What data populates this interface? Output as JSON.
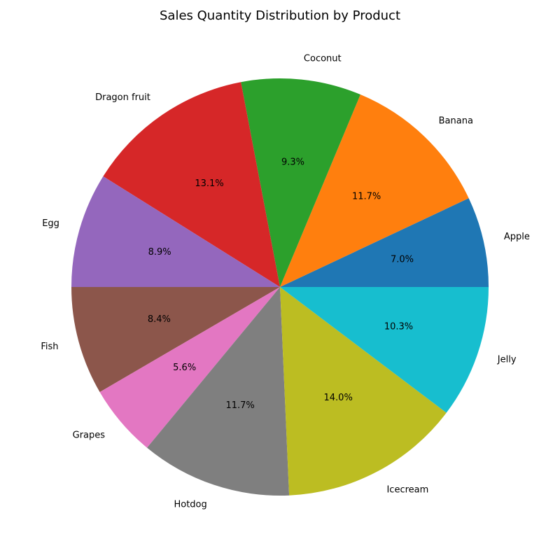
{
  "chart_data": {
    "type": "pie",
    "title": "Sales Quantity Distribution by Product",
    "start_angle_deg": 0,
    "direction": "counterclockwise",
    "slices": [
      {
        "label": "Apple",
        "value": 7.0,
        "pct_text": "7.0%",
        "color": "#1f77b4"
      },
      {
        "label": "Banana",
        "value": 11.7,
        "pct_text": "11.7%",
        "color": "#ff7f0e"
      },
      {
        "label": "Coconut",
        "value": 9.3,
        "pct_text": "9.3%",
        "color": "#2ca02c"
      },
      {
        "label": "Dragon fruit",
        "value": 13.1,
        "pct_text": "13.1%",
        "color": "#d62728"
      },
      {
        "label": "Egg",
        "value": 8.9,
        "pct_text": "8.9%",
        "color": "#9467bd"
      },
      {
        "label": "Fish",
        "value": 8.4,
        "pct_text": "8.4%",
        "color": "#8c564b"
      },
      {
        "label": "Grapes",
        "value": 5.6,
        "pct_text": "5.6%",
        "color": "#e377c2"
      },
      {
        "label": "Hotdog",
        "value": 11.7,
        "pct_text": "11.7%",
        "color": "#7f7f7f"
      },
      {
        "label": "Icecream",
        "value": 14.0,
        "pct_text": "14.0%",
        "color": "#bcbd22"
      },
      {
        "label": "Jelly",
        "value": 10.3,
        "pct_text": "10.3%",
        "color": "#17becf"
      }
    ]
  }
}
